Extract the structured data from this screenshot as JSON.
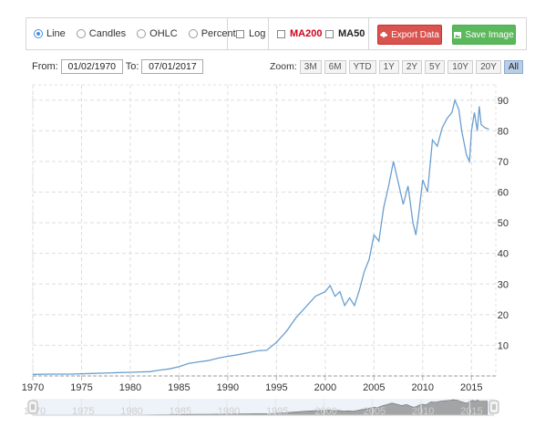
{
  "toolbar": {
    "chart_types": [
      {
        "label": "Line",
        "selected": true
      },
      {
        "label": "Candles",
        "selected": false
      },
      {
        "label": "OHLC",
        "selected": false
      },
      {
        "label": "Percent",
        "selected": false
      }
    ],
    "log_label": "Log",
    "ma200_label": "MA200",
    "ma50_label": "MA50",
    "export_label": "Export Data",
    "save_label": "Save Image",
    "colors": {
      "export_bg": "#d9534f",
      "save_bg": "#5cb85c",
      "ma200": "#d0021b",
      "selected_radio": "#4a90d9"
    }
  },
  "range": {
    "from_label": "From:",
    "from_value": "01/02/1970",
    "to_label": "To:",
    "to_value": "07/01/2017"
  },
  "zoom": {
    "label": "Zoom:",
    "options": [
      "3M",
      "6M",
      "YTD",
      "1Y",
      "2Y",
      "5Y",
      "10Y",
      "20Y",
      "All"
    ],
    "active": "All"
  },
  "chart_data": {
    "type": "line",
    "title": "",
    "xlabel": "",
    "ylabel": "",
    "x_ticks": [
      "1970",
      "1975",
      "1980",
      "1985",
      "1990",
      "1995",
      "2000",
      "2005",
      "2010",
      "2015"
    ],
    "y_ticks": [
      "10",
      "20",
      "30",
      "40",
      "50",
      "60",
      "70",
      "80",
      "90"
    ],
    "xlim": [
      1970.0,
      2017.5
    ],
    "ylim": [
      0,
      95
    ],
    "grid": true,
    "line_color": "#6a9fcf",
    "series": [
      {
        "values": [
          [
            1970,
            0.5
          ],
          [
            1972,
            0.6
          ],
          [
            1974,
            0.6
          ],
          [
            1976,
            0.8
          ],
          [
            1978,
            1.0
          ],
          [
            1980,
            1.2
          ],
          [
            1981,
            1.3
          ],
          [
            1982,
            1.4
          ],
          [
            1983,
            1.9
          ],
          [
            1984,
            2.3
          ],
          [
            1985,
            3.0
          ],
          [
            1986,
            4.1
          ],
          [
            1987,
            4.6
          ],
          [
            1988,
            5.0
          ],
          [
            1989,
            5.8
          ],
          [
            1990,
            6.4
          ],
          [
            1991,
            6.9
          ],
          [
            1992,
            7.5
          ],
          [
            1993,
            8.2
          ],
          [
            1994,
            8.4
          ],
          [
            1995,
            11.0
          ],
          [
            1996,
            14.5
          ],
          [
            1997,
            19.0
          ],
          [
            1998,
            22.5
          ],
          [
            1999,
            26.0
          ],
          [
            2000,
            27.5
          ],
          [
            2000.5,
            29.5
          ],
          [
            2001,
            26.0
          ],
          [
            2001.5,
            27.5
          ],
          [
            2002,
            23.0
          ],
          [
            2002.5,
            25.5
          ],
          [
            2003,
            23.0
          ],
          [
            2003.5,
            28.0
          ],
          [
            2004,
            34.0
          ],
          [
            2004.5,
            38.0
          ],
          [
            2005,
            46.0
          ],
          [
            2005.5,
            44.0
          ],
          [
            2006,
            55.0
          ],
          [
            2006.5,
            62.0
          ],
          [
            2007,
            70.0
          ],
          [
            2007.5,
            63.0
          ],
          [
            2008,
            56.0
          ],
          [
            2008.5,
            62.0
          ],
          [
            2009,
            50.0
          ],
          [
            2009.3,
            46.0
          ],
          [
            2009.6,
            53.0
          ],
          [
            2010,
            64.0
          ],
          [
            2010.5,
            60.0
          ],
          [
            2011,
            77.0
          ],
          [
            2011.5,
            75.0
          ],
          [
            2012,
            81.0
          ],
          [
            2012.5,
            84.0
          ],
          [
            2013,
            86.0
          ],
          [
            2013.3,
            90.0
          ],
          [
            2013.7,
            87.0
          ],
          [
            2014,
            80.0
          ],
          [
            2014.5,
            72.0
          ],
          [
            2014.8,
            70.0
          ],
          [
            2015,
            80.0
          ],
          [
            2015.3,
            86.0
          ],
          [
            2015.6,
            80.0
          ],
          [
            2015.8,
            88.0
          ],
          [
            2016,
            82.0
          ],
          [
            2016.4,
            81.0
          ],
          [
            2016.8,
            80.5
          ]
        ]
      }
    ],
    "navigator_ticks": [
      "1970",
      "1975",
      "1980",
      "1985",
      "1990",
      "1995",
      "2000",
      "2005",
      "2010",
      "2015"
    ]
  }
}
